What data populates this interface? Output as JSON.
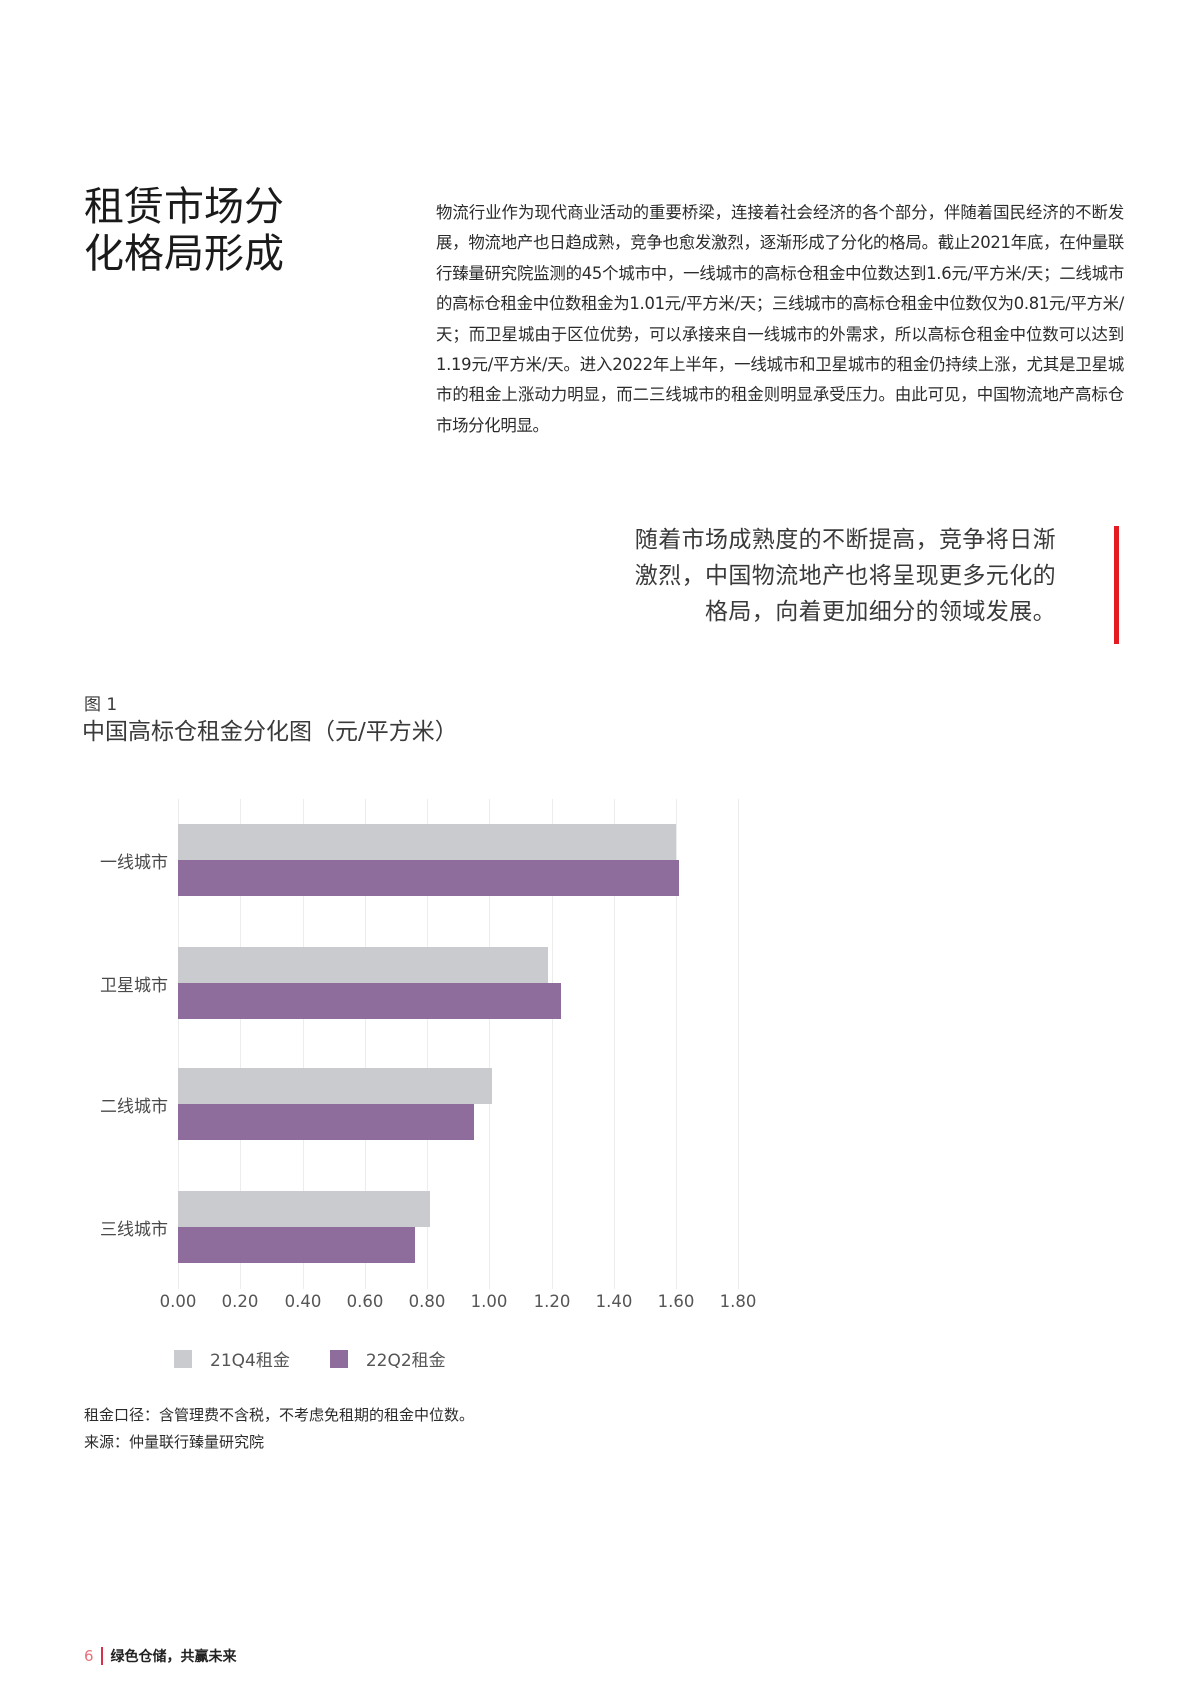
{
  "section": {
    "heading_line1": "租赁市场分",
    "heading_line2": "化格局形成",
    "body": "物流行业作为现代商业活动的重要桥梁，连接着社会经济的各个部分，伴随着国民经济的不断发展，物流地产也日趋成熟，竞争也愈发激烈，逐渐形成了分化的格局。截止2021年底，在仲量联行臻量研究院监测的45个城市中，一线城市的高标仓租金中位数达到1.6元/平方米/天；二线城市的高标仓租金中位数租金为1.01元/平方米/天；三线城市的高标仓租金中位数仅为0.81元/平方米/天；而卫星城由于区位优势，可以承接来自一线城市的外需求，所以高标仓租金中位数可以达到1.19元/平方米/天。进入2022年上半年，一线城市和卫星城市的租金仍持续上涨，尤其是卫星城市的租金上涨动力明显，而二三线城市的租金则明显承受压力。由此可见，中国物流地产高标仓市场分化明显。"
  },
  "quote": {
    "line1": "随着市场成熟度的不断提高，竞争将日渐",
    "line2": "激烈，中国物流地产也将呈现更多元化的",
    "line3": "格局，向着更加细分的领域发展。",
    "accent_color": "#e31b23"
  },
  "figure": {
    "number": "图 1",
    "title": "中国高标仓租金分化图（元/平方米）",
    "note": "租金口径：含管理费不含税，不考虑免租期的租金中位数。",
    "source": "来源：仲量联行臻量研究院"
  },
  "chart_data": {
    "type": "bar",
    "orientation": "horizontal",
    "title": "中国高标仓租金分化图（元/平方米）",
    "xlabel": "",
    "ylabel": "",
    "categories": [
      "一线城市",
      "卫星城市",
      "二线城市",
      "三线城市"
    ],
    "series": [
      {
        "name": "21Q4租金",
        "color": "#cacbcf",
        "values": [
          1.6,
          1.19,
          1.01,
          0.81
        ]
      },
      {
        "name": "22Q2租金",
        "color": "#8e6c9c",
        "values": [
          1.61,
          1.23,
          0.95,
          0.76
        ]
      }
    ],
    "xlim": [
      0,
      1.8
    ],
    "x_ticks": [
      "0.00",
      "0.20",
      "0.40",
      "0.60",
      "0.80",
      "1.00",
      "1.20",
      "1.40",
      "1.60",
      "1.80"
    ],
    "grid": "vertical",
    "legend_position": "bottom-left"
  },
  "footer": {
    "page_number": "6",
    "tagline": "绿色仓储，共赢未来"
  }
}
